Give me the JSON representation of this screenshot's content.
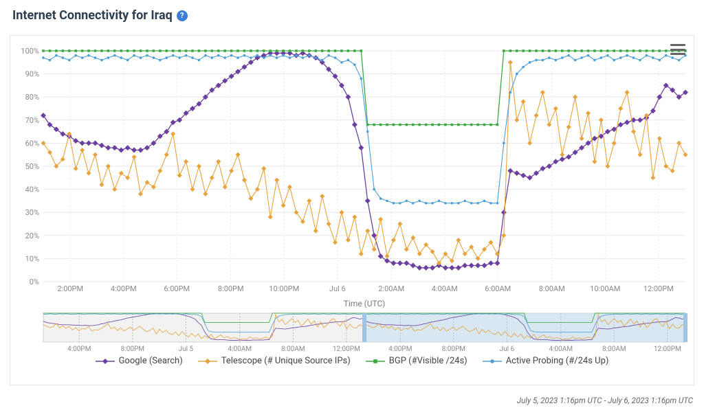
{
  "title": "Internet Connectivity for Iraq",
  "help_tooltip": "?",
  "timestamp_range": "July 5, 2023 1:16pm UTC - July 6, 2023 1:16pm UTC",
  "chart": {
    "type": "line",
    "background_color": "#ffffff",
    "grid_color": "#e8e8e8",
    "ylim": [
      0,
      100
    ],
    "ytick_step": 10,
    "ytick_suffix": "%",
    "xlabel": "Time (UTC)",
    "xlabel_fontsize": 12,
    "tick_fontsize": 11,
    "x_ticks": [
      "2:00PM",
      "4:00PM",
      "6:00PM",
      "8:00PM",
      "10:00PM",
      "Jul 6",
      "2:00AM",
      "4:00AM",
      "6:00AM",
      "8:00AM",
      "10:00AM",
      "12:00PM"
    ],
    "x_tick_positions": [
      0.042,
      0.125,
      0.208,
      0.292,
      0.375,
      0.458,
      0.542,
      0.625,
      0.708,
      0.792,
      0.875,
      0.958
    ],
    "series": [
      {
        "id": "google",
        "label": "Google (Search)",
        "color": "#6b3fa0",
        "marker": "diamond",
        "marker_size": 4,
        "line_width": 1.3,
        "data": [
          72,
          68,
          66,
          64,
          63,
          61,
          60,
          60,
          60,
          59,
          58,
          58,
          57,
          58,
          57,
          57,
          58,
          60,
          63,
          65,
          69,
          70,
          73,
          75,
          77,
          80,
          83,
          85,
          87,
          89,
          91,
          93,
          95,
          97,
          98,
          99,
          99,
          99,
          99,
          98,
          99,
          98,
          97,
          95,
          92,
          89,
          85,
          80,
          68,
          58,
          35,
          20,
          11,
          9,
          8,
          8,
          8,
          7,
          6,
          6,
          6,
          7,
          6,
          6,
          6,
          7,
          7,
          7,
          7,
          8,
          8,
          30,
          48,
          47,
          46,
          45,
          47,
          49,
          50,
          52,
          53,
          54,
          56,
          58,
          60,
          62,
          63,
          65,
          66,
          68,
          69,
          70,
          70,
          71,
          74,
          80,
          85,
          83,
          80,
          82
        ]
      },
      {
        "id": "telescope",
        "label": "Telescope (# Unique Source IPs)",
        "color": "#e8a33d",
        "marker": "diamond",
        "marker_size": 3.5,
        "line_width": 1.1,
        "data": [
          60,
          56,
          50,
          53,
          64,
          49,
          57,
          47,
          55,
          42,
          50,
          40,
          47,
          45,
          54,
          38,
          43,
          41,
          48,
          55,
          64,
          46,
          52,
          40,
          50,
          38,
          45,
          52,
          41,
          48,
          55,
          44,
          36,
          40,
          49,
          28,
          44,
          33,
          41,
          30,
          26,
          35,
          22,
          37,
          25,
          17,
          30,
          18,
          28,
          12,
          22,
          14,
          27,
          11,
          18,
          25,
          14,
          19,
          12,
          16,
          13,
          8,
          12,
          9,
          18,
          12,
          15,
          10,
          14,
          17,
          12,
          20,
          95,
          70,
          78,
          60,
          72,
          82,
          68,
          75,
          55,
          67,
          80,
          62,
          73,
          52,
          70,
          50,
          60,
          75,
          82,
          65,
          55,
          72,
          45,
          62,
          50,
          48,
          60,
          55
        ]
      },
      {
        "id": "bgp",
        "label": "BGP (#Visible /24s)",
        "color": "#3ba843",
        "marker": "square",
        "marker_size": 3,
        "line_width": 1.3,
        "data": [
          100,
          100,
          100,
          100,
          100,
          100,
          100,
          100,
          100,
          100,
          100,
          100,
          100,
          100,
          100,
          100,
          100,
          100,
          100,
          100,
          100,
          100,
          100,
          100,
          100,
          100,
          100,
          100,
          100,
          100,
          100,
          100,
          100,
          100,
          100,
          100,
          100,
          100,
          100,
          100,
          100,
          100,
          100,
          100,
          100,
          100,
          100,
          100,
          100,
          100,
          68,
          68,
          68,
          68,
          68,
          68,
          68,
          68,
          68,
          68,
          68,
          68,
          68,
          68,
          68,
          68,
          68,
          68,
          68,
          68,
          68,
          100,
          100,
          100,
          100,
          100,
          100,
          100,
          100,
          100,
          100,
          100,
          100,
          100,
          100,
          100,
          100,
          100,
          100,
          100,
          100,
          100,
          100,
          100,
          100,
          100,
          100,
          100,
          100,
          100
        ]
      },
      {
        "id": "active",
        "label": "Active Probing (#/24s Up)",
        "color": "#4a9fd8",
        "marker": "circle",
        "marker_size": 3,
        "line_width": 1.1,
        "data": [
          97,
          96,
          98,
          97,
          96,
          98,
          97,
          98,
          97,
          96,
          97,
          98,
          97,
          96,
          98,
          97,
          98,
          97,
          96,
          97,
          98,
          97,
          98,
          97,
          96,
          98,
          97,
          98,
          97,
          98,
          97,
          98,
          97,
          98,
          97,
          98,
          97,
          98,
          97,
          98,
          97,
          98,
          97,
          96,
          98,
          97,
          95,
          96,
          94,
          88,
          65,
          40,
          36,
          35,
          34,
          34,
          35,
          34,
          35,
          34,
          34,
          35,
          34,
          34,
          34,
          35,
          34,
          34,
          35,
          34,
          34,
          60,
          82,
          90,
          93,
          95,
          96,
          96,
          97,
          96,
          97,
          98,
          96,
          97,
          98,
          96,
          97,
          98,
          96,
          97,
          98,
          97,
          96,
          98,
          97,
          96,
          98,
          97,
          96,
          98
        ]
      }
    ]
  },
  "overview": {
    "background_color": "#f2f2f2",
    "selection_color": "#c3dff2",
    "selection_opacity": 0.55,
    "selection_range": [
      0.5,
      1.0
    ],
    "x_ticks": [
      "4:00PM",
      "8:00PM",
      "Jul 5",
      "4:00AM",
      "8:00AM",
      "12:00PM",
      "4:00PM",
      "8:00PM",
      "Jul 6",
      "4:00AM",
      "8:00AM",
      "12:00PM"
    ],
    "x_tick_positions": [
      0.056,
      0.139,
      0.222,
      0.306,
      0.389,
      0.472,
      0.556,
      0.639,
      0.722,
      0.806,
      0.889,
      0.972
    ]
  },
  "legend_items": [
    "google",
    "telescope",
    "bgp",
    "active"
  ],
  "menu_label": "Chart menu"
}
